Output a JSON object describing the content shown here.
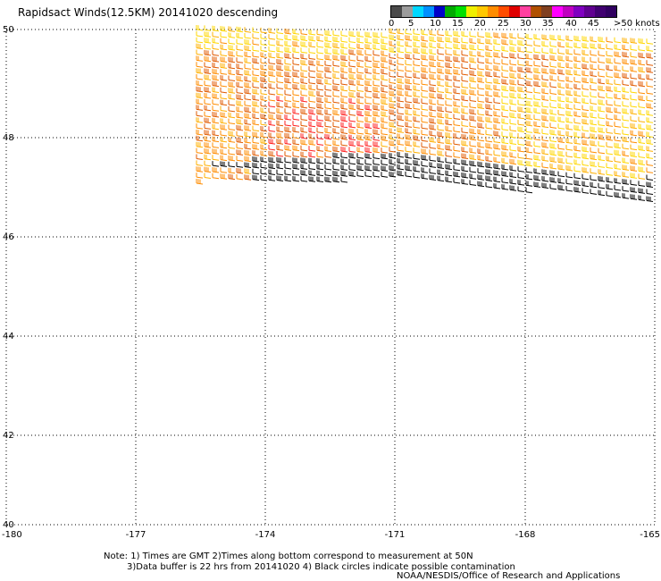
{
  "title": "Rapidsact Winds(12.5KM) 20141020 descending",
  "legend": {
    "labels": [
      "0",
      "5",
      "10",
      "15",
      "20",
      "25",
      "30",
      "35",
      "40",
      "45",
      ">50 knots"
    ],
    "colors": [
      "#4a4a4a",
      "#9c9c9c",
      "#00d8ff",
      "#0090ff",
      "#0000c8",
      "#00aa00",
      "#00e000",
      "#f0f000",
      "#ffc800",
      "#ff8c00",
      "#ff4c00",
      "#e00000",
      "#ff40a0",
      "#b05000",
      "#804020",
      "#ff00ff",
      "#c000c0",
      "#8000c0",
      "#600090",
      "#400070",
      "#300060"
    ]
  },
  "axes": {
    "lon_labels": [
      "-180",
      "-177",
      "-174",
      "-171",
      "-168",
      "-165"
    ],
    "lat_labels": [
      "50",
      "48",
      "46",
      "44",
      "42",
      "40"
    ]
  },
  "notes": {
    "line1": "Note: 1) Times are GMT 2)Times along bottom correspond to measurement at 50N",
    "line2": "3)Data buffer is 22 hrs from 20141020 4) Black circles indicate possible contamination",
    "credit": "NOAA/NESDIS/Office of Research and Applications"
  },
  "wind_colors": [
    "#ffd700",
    "#ffb000",
    "#ff8c00",
    "#e05a00",
    "#ff2020",
    "#000000"
  ]
}
